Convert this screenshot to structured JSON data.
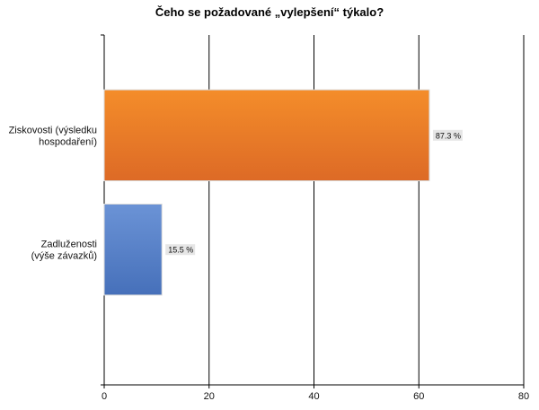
{
  "chart_data": {
    "type": "bar",
    "orientation": "horizontal",
    "title": "Čeho se požadované „vylepšení“ týkalo?",
    "xlabel": "",
    "ylabel": "",
    "xlim": [
      0,
      80
    ],
    "x_ticks": [
      0,
      20,
      40,
      60,
      80
    ],
    "grid": true,
    "categories": [
      [
        "Ziskovosti (výsledku",
        "hospodaření)"
      ],
      [
        "Zadluženosti",
        "(výše závazků)"
      ]
    ],
    "values": [
      62,
      11
    ],
    "data_labels": [
      "87.3 %",
      "15.5 %"
    ],
    "colors": [
      "#e9782a",
      "#4a7ac1"
    ]
  }
}
